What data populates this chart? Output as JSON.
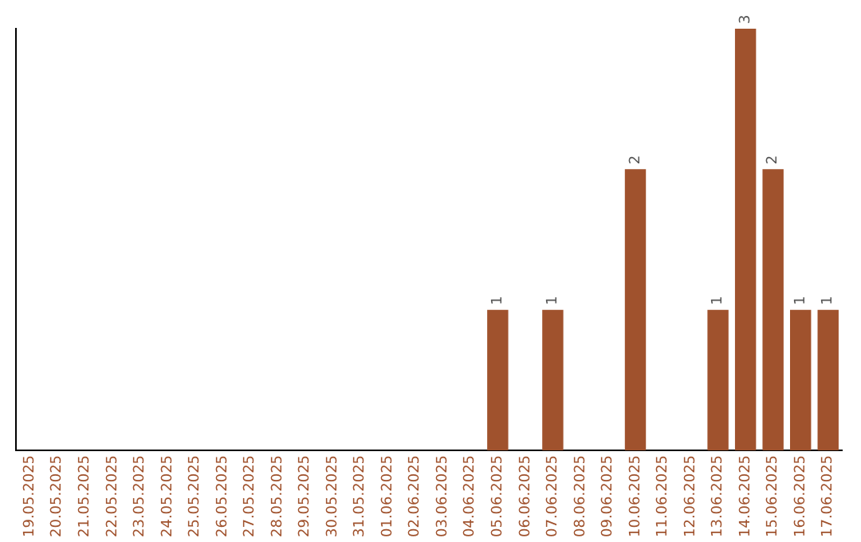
{
  "chart_data": {
    "type": "bar",
    "categories": [
      "19.05.2025",
      "20.05.2025",
      "21.05.2025",
      "22.05.2025",
      "23.05.2025",
      "24.05.2025",
      "25.05.2025",
      "26.05.2025",
      "27.05.2025",
      "28.05.2025",
      "29.05.2025",
      "30.05.2025",
      "31.05.2025",
      "01.06.2025",
      "02.06.2025",
      "03.06.2025",
      "04.06.2025",
      "05.06.2025",
      "06.06.2025",
      "07.06.2025",
      "08.06.2025",
      "09.06.2025",
      "10.06.2025",
      "11.06.2025",
      "12.06.2025",
      "13.06.2025",
      "14.06.2025",
      "15.06.2025",
      "16.06.2025",
      "17.06.2025"
    ],
    "values": [
      null,
      null,
      null,
      null,
      null,
      null,
      null,
      null,
      null,
      null,
      null,
      null,
      null,
      null,
      null,
      null,
      null,
      1,
      null,
      1,
      null,
      null,
      2,
      null,
      null,
      1,
      3,
      2,
      1,
      1
    ],
    "data_labels": true,
    "color": "#a0522d",
    "grid": false
  }
}
